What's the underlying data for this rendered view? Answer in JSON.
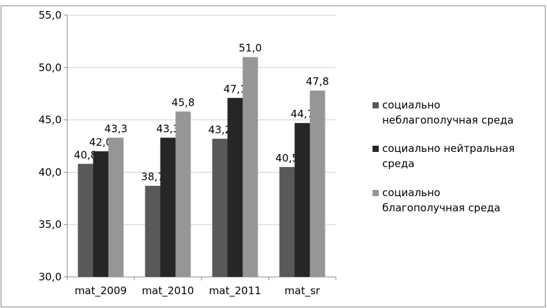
{
  "chart_data": {
    "type": "bar",
    "categories": [
      "mat_2009",
      "mat_2010",
      "mat_2011",
      "mat_sr"
    ],
    "series": [
      {
        "name": "социально\nнеблагополучная среда",
        "color": "#595959",
        "values": [
          40.8,
          38.7,
          43.2,
          40.5
        ],
        "value_labels": [
          "40,8",
          "38,7",
          "43,2",
          "40,5"
        ]
      },
      {
        "name": "социально нейтральная\nсреда",
        "color": "#262626",
        "values": [
          42.0,
          43.3,
          47.1,
          44.7
        ],
        "value_labels": [
          "42,0",
          "43,3",
          "47,1",
          "44,7"
        ]
      },
      {
        "name": "социально\nблагополучная среда",
        "color": "#969696",
        "values": [
          43.3,
          45.8,
          51.0,
          47.8
        ],
        "value_labels": [
          "43,3",
          "45,8",
          "51,0",
          "47,8"
        ]
      }
    ],
    "ylim": [
      30,
      55
    ],
    "yticks": [
      {
        "value": 30,
        "label": "30,0"
      },
      {
        "value": 35,
        "label": "35,0"
      },
      {
        "value": 40,
        "label": "40,0"
      },
      {
        "value": 45,
        "label": "45,0"
      },
      {
        "value": 50,
        "label": "50,0"
      },
      {
        "value": 55,
        "label": "55,0"
      }
    ],
    "grid": true,
    "legend": "right"
  }
}
